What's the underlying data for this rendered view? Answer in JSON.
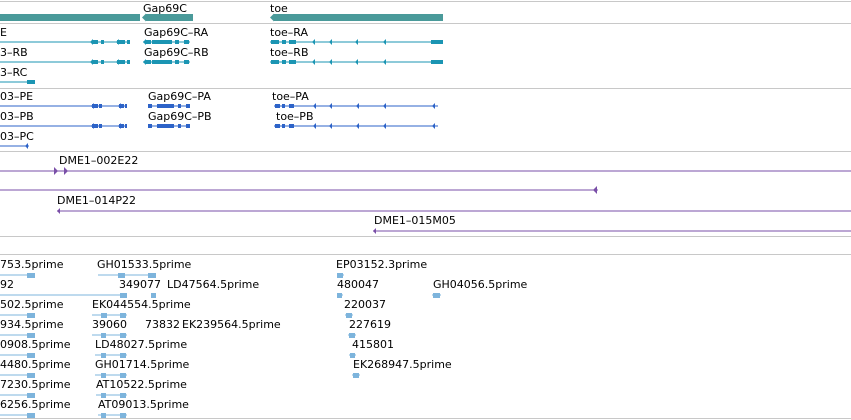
{
  "colors": {
    "gene": "#4a9a9a",
    "transcript": "#1b95b3",
    "protein": "#2d63c8",
    "clone": "#7a4fa8",
    "est": "#7db4dc",
    "separator": "#c8c8c8"
  },
  "tracks": {
    "genes": {
      "items": [
        {
          "label": "Gap69C"
        },
        {
          "label": "toe"
        }
      ]
    },
    "transcripts": {
      "items": [
        {
          "label": "E"
        },
        {
          "label": "Gap69C–RA"
        },
        {
          "label": "toe–RA"
        },
        {
          "label": "3–RB"
        },
        {
          "label": "Gap69C–RB"
        },
        {
          "label": "toe–RB"
        },
        {
          "label": "3–RC"
        }
      ]
    },
    "proteins": {
      "items": [
        {
          "label": "03–PE"
        },
        {
          "label": "Gap69C–PA"
        },
        {
          "label": "toe–PA"
        },
        {
          "label": "03–PB"
        },
        {
          "label": "Gap69C–PB"
        },
        {
          "label": "toe–PB"
        },
        {
          "label": "03–PC"
        }
      ]
    },
    "clones": {
      "items": [
        {
          "label": "DME1–002E22"
        },
        {
          "label": "DME1–014P22"
        },
        {
          "label": "DME1–015M05"
        }
      ]
    },
    "ests": {
      "items": [
        {
          "label": "753.5prime"
        },
        {
          "label": "GH01533.5prime"
        },
        {
          "label": "EP03152.3prime"
        },
        {
          "label": "92"
        },
        {
          "label": "349077"
        },
        {
          "label": "LD47564.5prime"
        },
        {
          "label": "480047"
        },
        {
          "label": "GH04056.5prime"
        },
        {
          "label": "502.5prime"
        },
        {
          "label": "EK044554.5prime"
        },
        {
          "label": "220037"
        },
        {
          "label": "934.5prime"
        },
        {
          "label": "39060"
        },
        {
          "label": "73832"
        },
        {
          "label": "EK239564.5prime"
        },
        {
          "label": "227619"
        },
        {
          "label": "0908.5prime"
        },
        {
          "label": "LD48027.5prime"
        },
        {
          "label": "415801"
        },
        {
          "label": "4480.5prime"
        },
        {
          "label": "GH01714.5prime"
        },
        {
          "label": "EK268947.5prime"
        },
        {
          "label": "7230.5prime"
        },
        {
          "label": "AT10522.5prime"
        },
        {
          "label": "6256.5prime"
        },
        {
          "label": "AT09013.5prime"
        }
      ]
    }
  }
}
